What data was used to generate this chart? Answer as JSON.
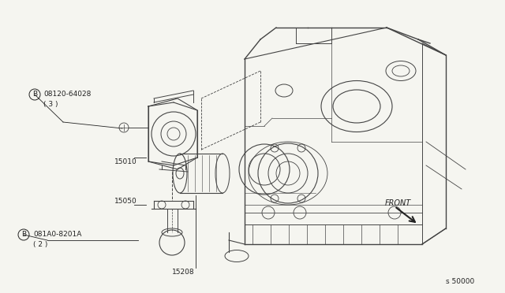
{
  "bg_color": "#f5f5f0",
  "line_color": "#444444",
  "dark_line": "#222222",
  "figsize": [
    6.4,
    3.72
  ],
  "dpi": 100,
  "labels": {
    "part1_B": "B",
    "part1_code": "08120-64028",
    "part1_qty": "( 3 )",
    "part2_num": "15010",
    "part3_num": "15050",
    "part4_B": "B",
    "part4_code": "081A0-8201A",
    "part4_qty": "( 2 )",
    "part5_num": "15208",
    "front_label": "FRONT",
    "diagram_id": "s 50000"
  }
}
